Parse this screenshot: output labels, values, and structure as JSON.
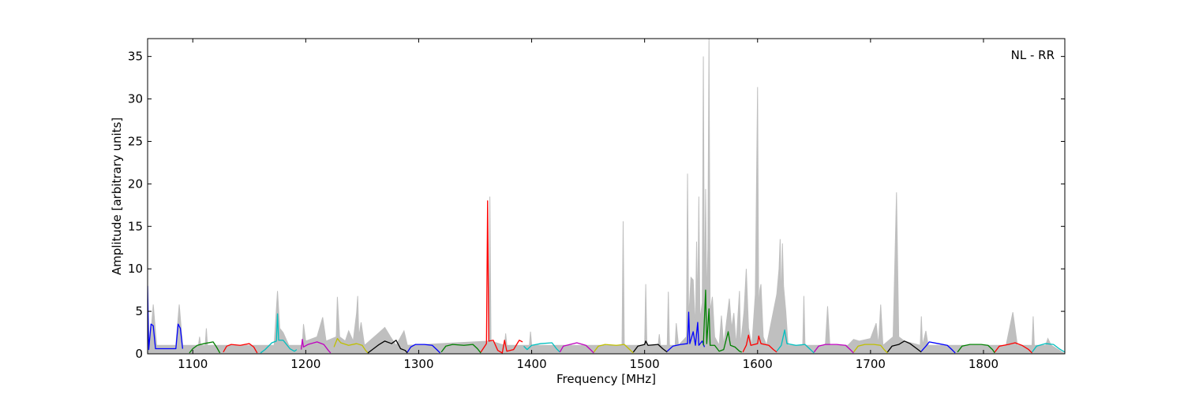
{
  "chart_data": {
    "type": "line",
    "xlabel": "Frequency [MHz]",
    "ylabel": "Amplitude [arbitrary units]",
    "annotation": "NL - RR",
    "xlim": [
      1060,
      1872
    ],
    "ylim": [
      0,
      37.1
    ],
    "xticks": [
      1100,
      1200,
      1300,
      1400,
      1500,
      1600,
      1700,
      1800
    ],
    "yticks": [
      0,
      5,
      10,
      15,
      20,
      25,
      30,
      35
    ],
    "series": [
      {
        "color": "#bfbfbf",
        "fill": true,
        "x": [
          1060,
          1062,
          1065,
          1068,
          1085,
          1088,
          1091,
          1105,
          1106,
          1107,
          1111,
          1112,
          1113,
          1172,
          1175,
          1177,
          1180,
          1185,
          1197,
          1198,
          1200,
          1210,
          1215,
          1218,
          1227,
          1228,
          1230,
          1235,
          1238,
          1242,
          1245,
          1246,
          1247,
          1249,
          1252,
          1265,
          1270,
          1275,
          1280,
          1287,
          1290,
          1362,
          1363,
          1364,
          1376,
          1377,
          1378,
          1398,
          1399,
          1400,
          1470,
          1480,
          1481,
          1482,
          1500,
          1501,
          1502,
          1512,
          1513,
          1514,
          1520,
          1521,
          1522,
          1527,
          1528,
          1530,
          1537,
          1538,
          1539,
          1541,
          1543,
          1545,
          1546,
          1547,
          1548,
          1549,
          1551,
          1552,
          1553,
          1554,
          1555,
          1556,
          1557,
          1558,
          1560,
          1562,
          1566,
          1568,
          1570,
          1575,
          1577,
          1579,
          1581,
          1584,
          1585,
          1588,
          1590,
          1592,
          1595,
          1598,
          1600,
          1601,
          1602,
          1603,
          1605,
          1608,
          1617,
          1619,
          1620,
          1621,
          1622,
          1623,
          1625,
          1627,
          1640,
          1641,
          1642,
          1660,
          1662,
          1664,
          1680,
          1685,
          1690,
          1700,
          1705,
          1707,
          1709,
          1711,
          1720,
          1723,
          1725,
          1730,
          1744,
          1745,
          1746,
          1749,
          1751,
          1820,
          1826,
          1830,
          1843,
          1844,
          1845,
          1855,
          1857,
          1860,
          1872
        ],
        "values": [
          0,
          1,
          5.8,
          1,
          1,
          5.8,
          1,
          1,
          2,
          1,
          1,
          3,
          1,
          1,
          7.4,
          3,
          2.5,
          1,
          1,
          3.5,
          1.5,
          2,
          4.3,
          1.5,
          2,
          6.7,
          2,
          1.5,
          2.7,
          1.5,
          4.8,
          6.8,
          2,
          3.7,
          1,
          2.5,
          3.1,
          2,
          1,
          2.7,
          1,
          1.5,
          18.5,
          1.5,
          1,
          2.4,
          1,
          1,
          2.6,
          1,
          1,
          1,
          15.6,
          1,
          1,
          8.2,
          1,
          1,
          2.3,
          1,
          1,
          7.3,
          1,
          1,
          3.6,
          1,
          2,
          21.2,
          4,
          9,
          8.7,
          3,
          13.2,
          5,
          18.5,
          4,
          6,
          35,
          5,
          19.4,
          6,
          12.4,
          37.1,
          5,
          6.7,
          2,
          1,
          4.5,
          1,
          6.5,
          3,
          4.8,
          1,
          7.4,
          1,
          5,
          10,
          3,
          1,
          7,
          31.4,
          5,
          7.5,
          8.2,
          2,
          1,
          7,
          10,
          13.5,
          6,
          13,
          8,
          5,
          1,
          1,
          6.8,
          1,
          1,
          5.6,
          1,
          1,
          1.7,
          1.5,
          1.8,
          3.6,
          1,
          5.8,
          1,
          2,
          19,
          2,
          1.5,
          1,
          4.4,
          1,
          2.7,
          1,
          1,
          4.9,
          1,
          1,
          4.4,
          1,
          1,
          1.8,
          1,
          0
        ]
      },
      {
        "color": "#0000ff",
        "x": [
          1060,
          1061,
          1063,
          1065,
          1067,
          1085,
          1087,
          1089,
          1091
        ],
        "values": [
          8,
          0.5,
          3.5,
          3.3,
          0.6,
          0.6,
          3.5,
          3,
          0.6
        ]
      },
      {
        "color": "#008000",
        "x": [
          1097,
          1100,
          1104,
          1110,
          1118,
          1121,
          1124
        ],
        "values": [
          0.1,
          0.6,
          1,
          1.2,
          1.4,
          0.8,
          0.1
        ]
      },
      {
        "color": "#ff0000",
        "x": [
          1127,
          1130,
          1134,
          1142,
          1150,
          1154,
          1157
        ],
        "values": [
          0.2,
          0.9,
          1.1,
          1,
          1.2,
          0.8,
          0.1
        ]
      },
      {
        "color": "#00bfbf",
        "x": [
          1160,
          1164,
          1170,
          1174,
          1175,
          1176,
          1180,
          1186,
          1190,
          1192
        ],
        "values": [
          0.1,
          0.5,
          1.3,
          1.5,
          4.7,
          1.6,
          1.6,
          0.6,
          0.3,
          0.5
        ]
      },
      {
        "color": "#bf00bf",
        "x": [
          1196,
          1197,
          1198,
          1202,
          1210,
          1216,
          1220,
          1222
        ],
        "values": [
          0.5,
          1.7,
          0.8,
          1.1,
          1.4,
          1.1,
          0.4,
          0.1
        ]
      },
      {
        "color": "#bfbf00",
        "x": [
          1225,
          1228,
          1231,
          1238,
          1245,
          1250,
          1253,
          1255
        ],
        "values": [
          0.8,
          1.8,
          1.3,
          1,
          1.2,
          1,
          0.4,
          0.1
        ]
      },
      {
        "color": "#000000",
        "x": [
          1255,
          1259,
          1265,
          1270,
          1276,
          1280,
          1284,
          1288,
          1290
        ],
        "values": [
          0.1,
          0.5,
          1.1,
          1.5,
          1.2,
          1.6,
          0.6,
          0.4,
          0.1
        ]
      },
      {
        "color": "#0000ff",
        "x": [
          1290,
          1293,
          1297,
          1305,
          1312,
          1316,
          1319
        ],
        "values": [
          0.2,
          0.8,
          1.1,
          1.1,
          1,
          0.5,
          0.1
        ]
      },
      {
        "color": "#008000",
        "x": [
          1320,
          1324,
          1330,
          1340,
          1348,
          1352,
          1355
        ],
        "values": [
          0.2,
          0.9,
          1.1,
          1,
          1.1,
          0.6,
          0.1
        ]
      },
      {
        "color": "#ff0000",
        "x": [
          1355,
          1359,
          1360,
          1361,
          1362,
          1366,
          1370,
          1374,
          1376,
          1378,
          1384,
          1389,
          1392
        ],
        "values": [
          0.2,
          1,
          1.2,
          18,
          1.5,
          1.6,
          0.4,
          0.1,
          1.6,
          0.3,
          0.5,
          1.6,
          1.4
        ]
      },
      {
        "color": "#00bfbf",
        "x": [
          1393,
          1396,
          1400,
          1408,
          1418,
          1422,
          1425
        ],
        "values": [
          0.9,
          0.5,
          1,
          1.2,
          1.3,
          0.6,
          0.2
        ]
      },
      {
        "color": "#bf00bf",
        "x": [
          1425,
          1428,
          1434,
          1440,
          1448,
          1452,
          1455
        ],
        "values": [
          0.2,
          0.9,
          1.1,
          1.3,
          1,
          0.5,
          0.1
        ]
      },
      {
        "color": "#bfbf00",
        "x": [
          1455,
          1459,
          1465,
          1475,
          1482,
          1486,
          1490
        ],
        "values": [
          0.2,
          0.9,
          1.1,
          1,
          1.1,
          0.6,
          0.1
        ]
      },
      {
        "color": "#000000",
        "x": [
          1490,
          1494,
          1500,
          1501,
          1503,
          1512,
          1516,
          1520
        ],
        "values": [
          0.2,
          0.9,
          1.1,
          1.5,
          1,
          1.1,
          0.6,
          0.2
        ]
      },
      {
        "color": "#0000ff",
        "x": [
          1520,
          1525,
          1532,
          1538,
          1539,
          1540,
          1543,
          1545,
          1547,
          1548,
          1551,
          1553
        ],
        "values": [
          0.3,
          0.9,
          1.1,
          1.2,
          4.9,
          1.2,
          2.6,
          1,
          3.7,
          1,
          1.5,
          0.8
        ]
      },
      {
        "color": "#008000",
        "x": [
          1552,
          1554,
          1555,
          1557,
          1558,
          1562,
          1566,
          1570,
          1574,
          1576,
          1580,
          1584,
          1586
        ],
        "values": [
          1,
          7.5,
          1.2,
          5.3,
          1,
          1,
          0.3,
          0.5,
          2.6,
          1,
          0.8,
          0.3,
          0.2
        ]
      },
      {
        "color": "#ff0000",
        "x": [
          1587,
          1590,
          1592,
          1594,
          1600,
          1601,
          1603,
          1610,
          1614,
          1617
        ],
        "values": [
          0.2,
          1,
          2.2,
          1,
          1.2,
          2.1,
          1.2,
          1,
          0.5,
          0.2
        ]
      },
      {
        "color": "#00bfbf",
        "x": [
          1617,
          1621,
          1624,
          1626,
          1634,
          1642,
          1646,
          1650
        ],
        "values": [
          0.3,
          1,
          2.8,
          1.2,
          1,
          1.1,
          0.6,
          0.1
        ]
      },
      {
        "color": "#bf00bf",
        "x": [
          1650,
          1654,
          1660,
          1670,
          1678,
          1682,
          1685
        ],
        "values": [
          0.2,
          0.9,
          1.1,
          1.1,
          1,
          0.5,
          0.1
        ]
      },
      {
        "color": "#bfbf00",
        "x": [
          1685,
          1689,
          1695,
          1703,
          1709,
          1712,
          1715
        ],
        "values": [
          0.2,
          0.9,
          1.1,
          1.1,
          1,
          0.5,
          0.1
        ]
      },
      {
        "color": "#000000",
        "x": [
          1715,
          1719,
          1725,
          1730,
          1735,
          1741,
          1745
        ],
        "values": [
          0.2,
          0.9,
          1.1,
          1.5,
          1.2,
          0.6,
          0.2
        ]
      },
      {
        "color": "#0000ff",
        "x": [
          1745,
          1749,
          1752,
          1760,
          1768,
          1772,
          1775
        ],
        "values": [
          0.3,
          0.9,
          1.4,
          1.2,
          1,
          0.5,
          0.1
        ]
      },
      {
        "color": "#008000",
        "x": [
          1777,
          1781,
          1788,
          1798,
          1804,
          1808,
          1810
        ],
        "values": [
          0.2,
          0.9,
          1.1,
          1.1,
          1,
          0.5,
          0.1
        ]
      },
      {
        "color": "#ff0000",
        "x": [
          1810,
          1814,
          1822,
          1828,
          1834,
          1840,
          1843
        ],
        "values": [
          0.2,
          0.9,
          1.1,
          1.3,
          1,
          0.5,
          0.1
        ]
      },
      {
        "color": "#00bfbf",
        "x": [
          1843,
          1847,
          1855,
          1862,
          1867,
          1872
        ],
        "values": [
          0.2,
          0.9,
          1.2,
          1.1,
          0.6,
          0.2
        ]
      }
    ]
  }
}
